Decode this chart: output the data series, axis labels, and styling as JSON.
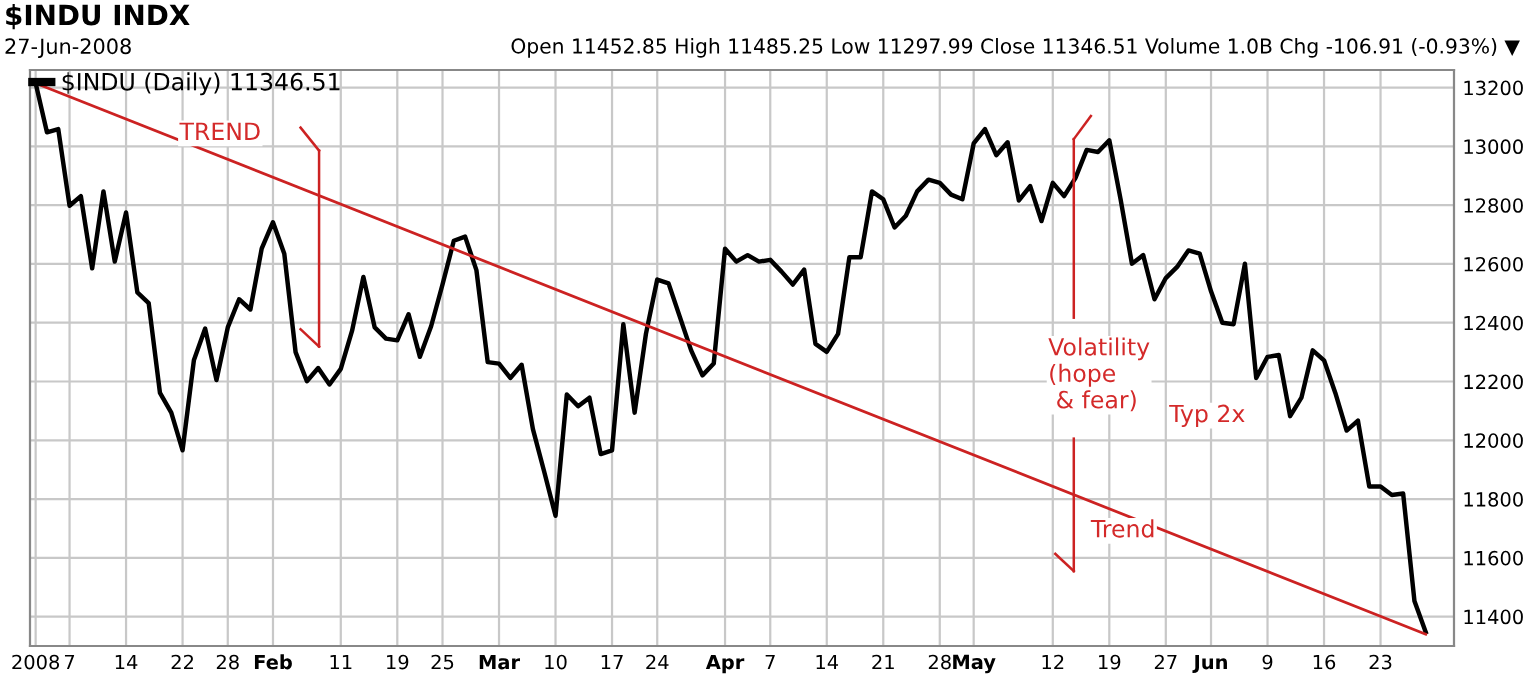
{
  "chart_data": {
    "type": "line",
    "title": "$INDU INDX",
    "subtitle": "27-Jun-2008",
    "categories": [
      "2008",
      null,
      null,
      "7",
      null,
      null,
      null,
      null,
      "14",
      null,
      null,
      null,
      null,
      "22",
      null,
      null,
      null,
      "28",
      null,
      null,
      null,
      "Feb",
      null,
      null,
      null,
      null,
      null,
      "11",
      null,
      null,
      null,
      null,
      "19",
      null,
      null,
      null,
      "25",
      null,
      null,
      null,
      null,
      "Mar",
      null,
      null,
      null,
      null,
      "10",
      null,
      null,
      null,
      null,
      "17",
      null,
      null,
      null,
      "24",
      null,
      null,
      null,
      null,
      null,
      "Apr",
      null,
      null,
      null,
      "7",
      null,
      null,
      null,
      null,
      "14",
      null,
      null,
      null,
      null,
      "21",
      null,
      null,
      null,
      null,
      "28",
      null,
      null,
      "May",
      null,
      null,
      null,
      null,
      null,
      null,
      "12",
      null,
      null,
      null,
      null,
      "19",
      null,
      null,
      null,
      null,
      "27",
      null,
      null,
      null,
      "Jun",
      null,
      null,
      null,
      null,
      "9",
      null,
      null,
      null,
      null,
      "16",
      null,
      null,
      null,
      null,
      "23",
      null,
      null,
      null,
      null
    ],
    "series": [
      {
        "name": "$INDU (Daily) 11346.51",
        "color": "#000000",
        "values": [
          13215,
          13048,
          13059,
          12798,
          12831,
          12585,
          12847,
          12608,
          12775,
          12503,
          12467,
          12161,
          12094,
          11966,
          12272,
          12380,
          12205,
          12384,
          12480,
          12445,
          12652,
          12742,
          12635,
          12300,
          12201,
          12246,
          12190,
          12243,
          12373,
          12556,
          12384,
          12346,
          12340,
          12429,
          12284,
          12389,
          12530,
          12679,
          12693,
          12579,
          12266,
          12261,
          12212,
          12257,
          12038,
          11893,
          11743,
          12156,
          12116,
          12145,
          11953,
          11966,
          12395,
          12094,
          12362,
          12547,
          12534,
          12420,
          12306,
          12221,
          12261,
          12652,
          12608,
          12630,
          12608,
          12614,
          12574,
          12530,
          12581,
          12328,
          12301,
          12362,
          12623,
          12623,
          12847,
          12820,
          12724,
          12764,
          12847,
          12887,
          12876,
          12836,
          12820,
          13010,
          13059,
          12970,
          13014,
          12816,
          12865,
          12746,
          12876,
          12831,
          12892,
          12988,
          12981,
          13021,
          12820,
          12601,
          12630,
          12480,
          12552,
          12590,
          12646,
          12635,
          12507,
          12400,
          12395,
          12601,
          12212,
          12284,
          12290,
          12082,
          12145,
          12306,
          12272,
          12161,
          12033,
          12067,
          11843,
          11843,
          11814,
          11819,
          11453,
          11347
        ]
      },
      {
        "type": "line",
        "color": "#cc2222",
        "values": [
          13215,
          null,
          null,
          null,
          null,
          null,
          null,
          null,
          null,
          null,
          null,
          null,
          null,
          null,
          null,
          null,
          null,
          null,
          null,
          null,
          null,
          null,
          null,
          null,
          null,
          null,
          null,
          null,
          null,
          null,
          null,
          null,
          null,
          null,
          null,
          null,
          null,
          null,
          null,
          null,
          null,
          null,
          null,
          null,
          null,
          null,
          null,
          null,
          null,
          null,
          null,
          null,
          null,
          null,
          null,
          null,
          null,
          null,
          null,
          null,
          null,
          null,
          null,
          null,
          null,
          null,
          null,
          null,
          null,
          null,
          null,
          null,
          null,
          null,
          null,
          null,
          null,
          null,
          null,
          null,
          null,
          null,
          null,
          null,
          null,
          null,
          null,
          null,
          null,
          null,
          null,
          null,
          null,
          null,
          null,
          null,
          null,
          null,
          null,
          null,
          null,
          null,
          null,
          null,
          null,
          null,
          null,
          null,
          null,
          null,
          null,
          null,
          null,
          null,
          null,
          null,
          null,
          null,
          null,
          null,
          null,
          null,
          null,
          11340
        ]
      }
    ],
    "ylim": [
      11300,
      13260
    ],
    "yticks": [
      11400,
      11600,
      11800,
      12000,
      12200,
      12400,
      12600,
      12800,
      13000,
      13200
    ],
    "grid": true,
    "legend": "top left",
    "annotations": [
      "Open 11452.85 High 11485.25 Low 11297.99 Close 11346.51 Volume 1.0B Chg -106.91 (-0.93%) ▼",
      "TREND",
      "Volatility\n(hope\n & fear)",
      "Typ 2x",
      "Trend"
    ]
  }
}
